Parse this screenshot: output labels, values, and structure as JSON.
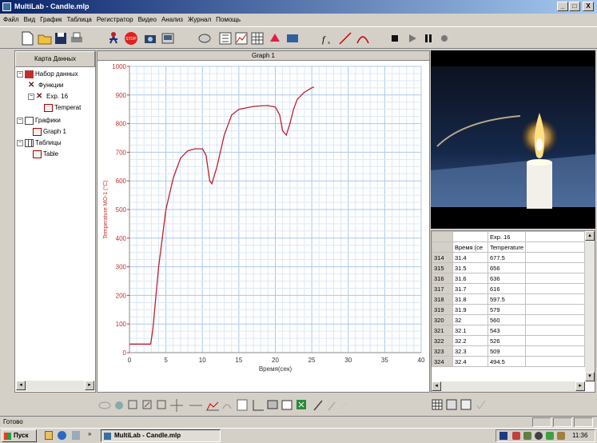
{
  "window": {
    "title": "MultiLab - Candle.mlp",
    "min": "_",
    "max": "□",
    "close": "X"
  },
  "menu": [
    "Файл",
    "Вид",
    "График",
    "Таблица",
    "Регистратор",
    "Видео",
    "Анализ",
    "Журнал",
    "Помощь"
  ],
  "data_map": {
    "tab_label": "Карта Данных",
    "items": [
      {
        "label": "Набор данных"
      },
      {
        "label": "Функции"
      },
      {
        "label": "Exp. 16"
      },
      {
        "label": "Temperat"
      },
      {
        "label": "Графики"
      },
      {
        "label": "Graph 1"
      },
      {
        "label": "Таблицы"
      },
      {
        "label": "Table"
      }
    ]
  },
  "graph": {
    "title": "Graph 1"
  },
  "chart_data": {
    "type": "line",
    "xlabel": "Время(сек)",
    "ylabel": "Temperature MO-1 (°C)",
    "xlim": [
      0,
      40
    ],
    "ylim": [
      0,
      1000
    ],
    "xticks": [
      0,
      5,
      10,
      15,
      20,
      25,
      30,
      35,
      40
    ],
    "yticks": [
      0,
      100,
      200,
      300,
      400,
      500,
      600,
      700,
      800,
      900,
      1000
    ],
    "grid": true,
    "color": "#c0202a",
    "x": [
      0,
      2.9,
      3.2,
      4,
      5,
      6,
      7,
      8,
      9,
      10,
      10.5,
      11,
      11.3,
      12,
      13,
      14,
      15,
      16,
      17,
      18,
      19,
      20,
      20.6,
      21,
      21.5,
      22,
      22.5,
      23,
      24,
      25,
      25.3
    ],
    "y": [
      30,
      30,
      80,
      300,
      500,
      610,
      680,
      705,
      712,
      712,
      690,
      600,
      590,
      650,
      760,
      830,
      850,
      855,
      860,
      862,
      863,
      858,
      830,
      775,
      760,
      800,
      850,
      885,
      910,
      925,
      928
    ]
  },
  "table": {
    "group_header": "Exp. 16",
    "columns": [
      "Время (се",
      "Temperature"
    ],
    "rows": [
      [
        "314",
        "31.4",
        "677.5"
      ],
      [
        "315",
        "31.5",
        "656"
      ],
      [
        "316",
        "31.6",
        "636"
      ],
      [
        "317",
        "31.7",
        "616"
      ],
      [
        "318",
        "31.8",
        "597.5"
      ],
      [
        "319",
        "31.9",
        "579"
      ],
      [
        "320",
        "32",
        "560"
      ],
      [
        "321",
        "32.1",
        "543"
      ],
      [
        "322",
        "32.2",
        "526"
      ],
      [
        "323",
        "32.3",
        "509"
      ],
      [
        "324",
        "32.4",
        "494.5"
      ]
    ]
  },
  "status": {
    "text": "Готово"
  },
  "taskbar": {
    "start": "Пуск",
    "task": "MultiLab - Candle.mlp",
    "quick": "»",
    "time": "11:36"
  }
}
